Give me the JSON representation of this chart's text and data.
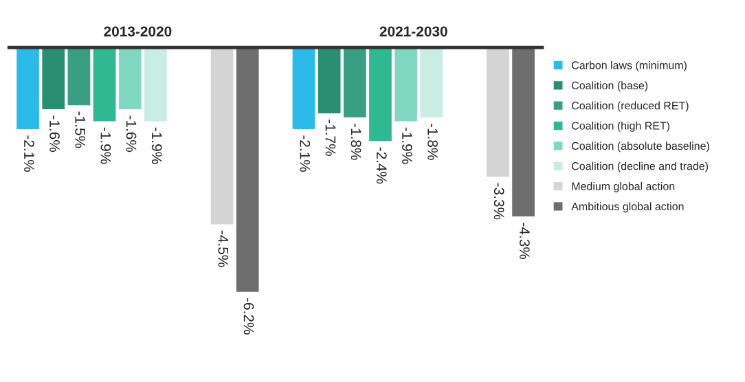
{
  "chart_data": {
    "type": "bar",
    "categories": [
      "2013-2020",
      "2021-2030"
    ],
    "legend": "right",
    "series": [
      {
        "name": "Carbon laws (minimum)",
        "color": "#2bbbe9",
        "values": [
          -2.1,
          -2.1
        ],
        "value_labels": [
          "-2.1%",
          "-2.1%"
        ]
      },
      {
        "name": "Coalition (base)",
        "color": "#2a8f72",
        "values": [
          -1.6,
          -1.7
        ],
        "value_labels": [
          "-1.6%",
          "-1.7%"
        ]
      },
      {
        "name": "Coalition (reduced RET)",
        "color": "#3a9f82",
        "values": [
          -1.5,
          -1.8
        ],
        "value_labels": [
          "-1.5%",
          "-1.8%"
        ]
      },
      {
        "name": "Coalition (high RET)",
        "color": "#2fb892",
        "values": [
          -1.9,
          -2.4
        ],
        "value_labels": [
          "-1.9%",
          "-2.4%"
        ]
      },
      {
        "name": "Coalition (absolute baseline)",
        "color": "#80d8c2",
        "values": [
          -1.6,
          -1.9
        ],
        "value_labels": [
          "-1.6%",
          "-1.9%"
        ]
      },
      {
        "name": "Coalition (decline and trade)",
        "color": "#c9ede3",
        "values": [
          -1.9,
          -1.8
        ],
        "value_labels": [
          "-1.9%",
          "-1.8%"
        ]
      },
      {
        "name": "Medium global action",
        "color": "#d4d4d4",
        "values": [
          -4.5,
          -3.3
        ],
        "value_labels": [
          "-4.5%",
          "-3.3%"
        ]
      },
      {
        "name": "Ambitious global action",
        "color": "#6e6e6e",
        "values": [
          -6.2,
          -4.3
        ],
        "value_labels": [
          "-6.2%",
          "-4.3%"
        ]
      }
    ]
  }
}
